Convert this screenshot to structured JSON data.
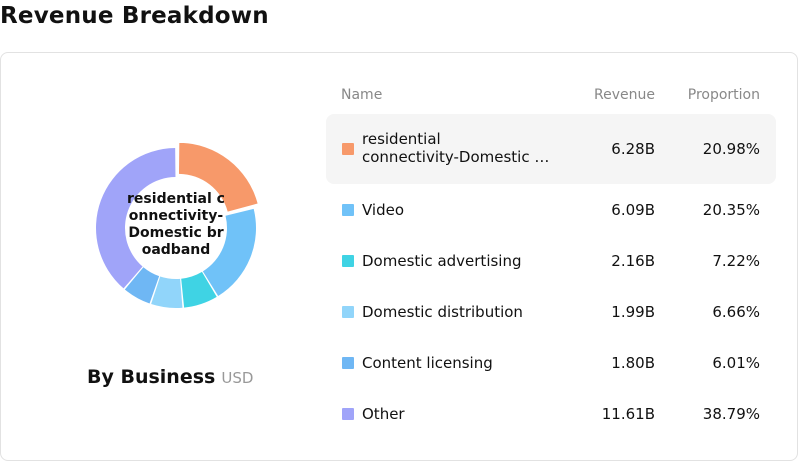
{
  "page": {
    "title": "Revenue Breakdown"
  },
  "chart": {
    "center_label": "residential connectivity-Domestic broadband",
    "subtitle": "By Business",
    "unit": "USD"
  },
  "table": {
    "headers": {
      "name": "Name",
      "revenue": "Revenue",
      "proportion": "Proportion"
    },
    "rows": [
      {
        "name_line1": "residential",
        "name_line2": "connectivity-Domestic broadband",
        "revenue": "6.28B",
        "proportion": "20.98%"
      },
      {
        "name": "Video",
        "revenue": "6.09B",
        "proportion": "20.35%"
      },
      {
        "name": "Domestic advertising",
        "revenue": "2.16B",
        "proportion": "7.22%"
      },
      {
        "name": "Domestic distribution",
        "revenue": "1.99B",
        "proportion": "6.66%"
      },
      {
        "name": "Content licensing",
        "revenue": "1.80B",
        "proportion": "6.01%"
      },
      {
        "name": "Other",
        "revenue": "11.61B",
        "proportion": "38.79%"
      }
    ]
  },
  "chart_data": {
    "type": "pie",
    "subtitle": "By Business",
    "unit": "USD",
    "highlighted": 0,
    "categories": [
      "residential connectivity-Domestic broadband",
      "Video",
      "Domestic advertising",
      "Domestic distribution",
      "Content licensing",
      "Other"
    ],
    "values": [
      6.28,
      6.09,
      2.16,
      1.99,
      1.8,
      11.61
    ],
    "proportions": [
      20.98,
      20.35,
      7.22,
      6.66,
      6.01,
      38.79
    ],
    "colors": [
      "#f7996a",
      "#70c2f8",
      "#3fd3e4",
      "#91d5fa",
      "#6fb7f4",
      "#a0a4f9"
    ]
  }
}
